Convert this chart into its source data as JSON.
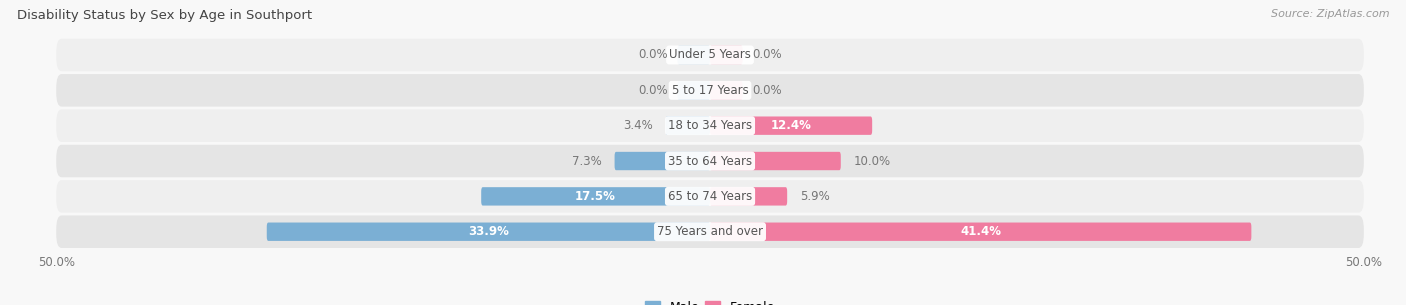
{
  "title": "Disability Status by Sex by Age in Southport",
  "source": "Source: ZipAtlas.com",
  "categories": [
    "Under 5 Years",
    "5 to 17 Years",
    "18 to 34 Years",
    "35 to 64 Years",
    "65 to 74 Years",
    "75 Years and over"
  ],
  "male_values": [
    0.0,
    0.0,
    3.4,
    7.3,
    17.5,
    33.9
  ],
  "female_values": [
    0.0,
    0.0,
    12.4,
    10.0,
    5.9,
    41.4
  ],
  "male_color": "#7bafd4",
  "female_color": "#f07ca0",
  "axis_limit": 50.0,
  "bar_height": 0.52,
  "row_bg_color": "#efefef",
  "row_bg_color2": "#e5e5e5",
  "fig_bg_color": "#f8f8f8",
  "label_fontsize": 8.5,
  "title_fontsize": 9.5,
  "source_fontsize": 8,
  "value_label_threshold": 12.0,
  "center_label_color": "#555555",
  "outer_label_color": "#777777",
  "white_label_color": "#ffffff"
}
